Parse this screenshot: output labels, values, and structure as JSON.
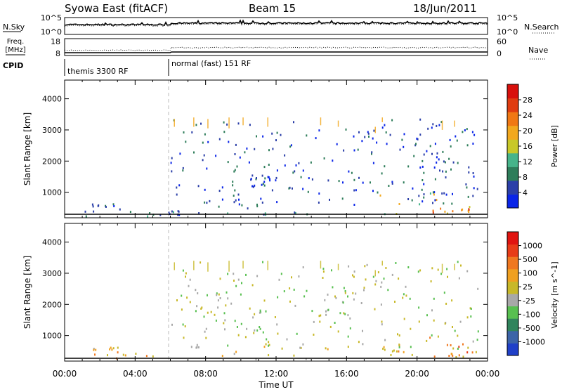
{
  "header": {
    "station": "Syowa East (fitACF)",
    "beam": "Beam 15",
    "date": "18/Jun/2011"
  },
  "noise_panel": {
    "left_label": "N.Sky",
    "right_label": "N.Search",
    "left_ticks": [
      "10^5",
      "10^0"
    ],
    "right_ticks": [
      "10^5",
      "10^0"
    ]
  },
  "freq_panel": {
    "left_label_1": "Freq.",
    "left_label_2": "[MHz]",
    "left_ticks": [
      "18",
      "8"
    ],
    "right_label": "Nave",
    "right_ticks": [
      "60",
      "0"
    ]
  },
  "cpid_panel": {
    "label": "CPID",
    "modes": [
      {
        "name": "themis 3300 RF",
        "start_hour": 0
      },
      {
        "name": "normal (fast) 151 RF",
        "start_hour": 6
      }
    ]
  },
  "x_axis": {
    "label": "Time UT",
    "ticks": [
      "00:00",
      "04:00",
      "08:00",
      "12:00",
      "16:00",
      "20:00",
      "00:00"
    ],
    "range_hours": [
      0,
      24
    ]
  },
  "y_axis": {
    "label": "Slant Range [km]",
    "ticks": [
      "1000",
      "2000",
      "3000",
      "4000"
    ],
    "range_km": [
      180,
      4600
    ]
  },
  "power_colorbar": {
    "label": "Power [dB]",
    "ticks": [
      "4",
      "8",
      "12",
      "16",
      "20",
      "24",
      "28"
    ],
    "colors": [
      "#0a25e8",
      "#2b3fa8",
      "#2e7d5a",
      "#46b48a",
      "#c8c828",
      "#f2a81e",
      "#f07814",
      "#e03c10",
      "#d8100c"
    ]
  },
  "velocity_colorbar": {
    "label": "Velocity [m s^-1]",
    "ticks": [
      "1000",
      "500",
      "100",
      "25",
      "-25",
      "-100",
      "-500",
      "-1000"
    ],
    "colors": [
      "#2040c8",
      "#3c64a8",
      "#30845c",
      "#58c050",
      "#a8a8a8",
      "#c8b828",
      "#f0a020",
      "#f07820",
      "#e83c18",
      "#e01410"
    ]
  },
  "chart_data": {
    "type": "heatmap",
    "x_unit": "hours UT",
    "y_unit": "km",
    "power_clusters": [
      {
        "t0": 0.0,
        "t1": 5.5,
        "r0": 250,
        "r1": 500,
        "level": 2
      },
      {
        "t0": 1.5,
        "t1": 3.0,
        "r0": 550,
        "r1": 650,
        "level": 1
      },
      {
        "t0": 5.8,
        "t1": 6.5,
        "r0": 300,
        "r1": 450,
        "level": 1
      },
      {
        "t0": 8.5,
        "t1": 11.5,
        "r0": 1050,
        "r1": 1350,
        "level": 1
      },
      {
        "t0": 10.5,
        "t1": 12.0,
        "r0": 1400,
        "r1": 1550,
        "level": 1
      },
      {
        "t0": 8.0,
        "t1": 12.5,
        "r0": 500,
        "r1": 800,
        "level": 1
      },
      {
        "t0": 6.0,
        "t1": 16.0,
        "r0": 250,
        "r1": 400,
        "level": 2
      },
      {
        "t0": 17.5,
        "t1": 23.8,
        "r0": 300,
        "r1": 1000,
        "level": 4
      },
      {
        "t0": 20.5,
        "t1": 23.5,
        "r0": 300,
        "r1": 650,
        "level": 6
      },
      {
        "t0": 20.0,
        "t1": 22.5,
        "r0": 1700,
        "r1": 2300,
        "level": 1
      }
    ],
    "velocity_clusters": [
      {
        "t0": 0.0,
        "t1": 5.5,
        "r0": 250,
        "r1": 500,
        "level": 6
      },
      {
        "t0": 1.5,
        "t1": 3.0,
        "r0": 550,
        "r1": 650,
        "level": 5
      },
      {
        "t0": 8.5,
        "t1": 11.5,
        "r0": 1050,
        "r1": 1550,
        "level": 4
      },
      {
        "t0": 6.0,
        "t1": 16.0,
        "r0": 250,
        "r1": 700,
        "level": 5
      },
      {
        "t0": 17.5,
        "t1": 23.8,
        "r0": 300,
        "r1": 1000,
        "level": 6
      },
      {
        "t0": 20.5,
        "t1": 23.5,
        "r0": 350,
        "r1": 750,
        "level": 7
      },
      {
        "t0": 18.0,
        "t1": 19.0,
        "r0": 500,
        "r1": 750,
        "level": 6
      }
    ],
    "streaks": [
      {
        "t": 6.2,
        "r0": 3100,
        "r1": 3350
      },
      {
        "t": 7.3,
        "r0": 3100,
        "r1": 3400
      },
      {
        "t": 8.1,
        "r0": 3050,
        "r1": 3350
      },
      {
        "t": 9.3,
        "r0": 3050,
        "r1": 3400
      },
      {
        "t": 10.1,
        "r0": 3150,
        "r1": 3400
      },
      {
        "t": 11.5,
        "r0": 3100,
        "r1": 3400
      },
      {
        "t": 14.5,
        "r0": 3150,
        "r1": 3400
      },
      {
        "t": 15.5,
        "r0": 3100,
        "r1": 3300
      },
      {
        "t": 17.6,
        "r0": 2900,
        "r1": 3100
      },
      {
        "t": 18.0,
        "r0": 3250,
        "r1": 3400
      },
      {
        "t": 21.4,
        "r0": 3000,
        "r1": 3300
      },
      {
        "t": 22.1,
        "r0": 3100,
        "r1": 3300
      }
    ]
  }
}
